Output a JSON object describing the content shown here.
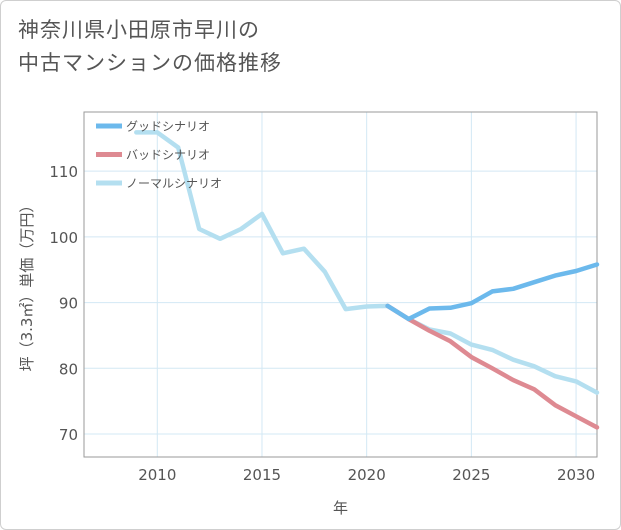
{
  "title": {
    "line1": "神奈川県小田原市早川の",
    "line2": "中古マンションの価格推移"
  },
  "chart_data": {
    "type": "line",
    "xlabel": "年",
    "ylabel": "坪（3.3㎡）単価（万円）",
    "xlim": [
      2006.5,
      2031
    ],
    "ylim": [
      66.5,
      119
    ],
    "xticks": [
      2010,
      2015,
      2020,
      2025,
      2030
    ],
    "yticks": [
      70,
      80,
      90,
      100,
      110
    ],
    "grid": true,
    "legend_position": "top-left",
    "series": [
      {
        "name": "グッドシナリオ",
        "color": "#6cb9ec",
        "x": [
          2021,
          2022,
          2023,
          2024,
          2025,
          2026,
          2027,
          2028,
          2029,
          2030,
          2031
        ],
        "y": [
          89.5,
          87.5,
          89.1,
          89.2,
          89.9,
          91.7,
          92.1,
          93.1,
          94.1,
          94.8,
          95.8
        ]
      },
      {
        "name": "バッドシナリオ",
        "color": "#de8a92",
        "x": [
          2021,
          2022,
          2023,
          2024,
          2025,
          2026,
          2027,
          2028,
          2029,
          2030,
          2031
        ],
        "y": [
          89.5,
          87.5,
          85.7,
          84.1,
          81.7,
          80.0,
          78.2,
          76.8,
          74.4,
          72.7,
          71.0
        ]
      },
      {
        "name": "ノーマルシナリオ",
        "color": "#b4dff0",
        "x": [
          2009,
          2010,
          2011,
          2012,
          2013,
          2014,
          2015,
          2016,
          2017,
          2018,
          2019,
          2020,
          2021,
          2022,
          2023,
          2024,
          2025,
          2026,
          2027,
          2028,
          2029,
          2030,
          2031
        ],
        "y": [
          115.9,
          115.9,
          113.6,
          101.2,
          99.7,
          101.2,
          103.5,
          97.5,
          98.2,
          94.7,
          89.0,
          89.4,
          89.5,
          87.5,
          85.9,
          85.3,
          83.6,
          82.8,
          81.3,
          80.3,
          78.8,
          78.0,
          76.3
        ]
      }
    ]
  }
}
